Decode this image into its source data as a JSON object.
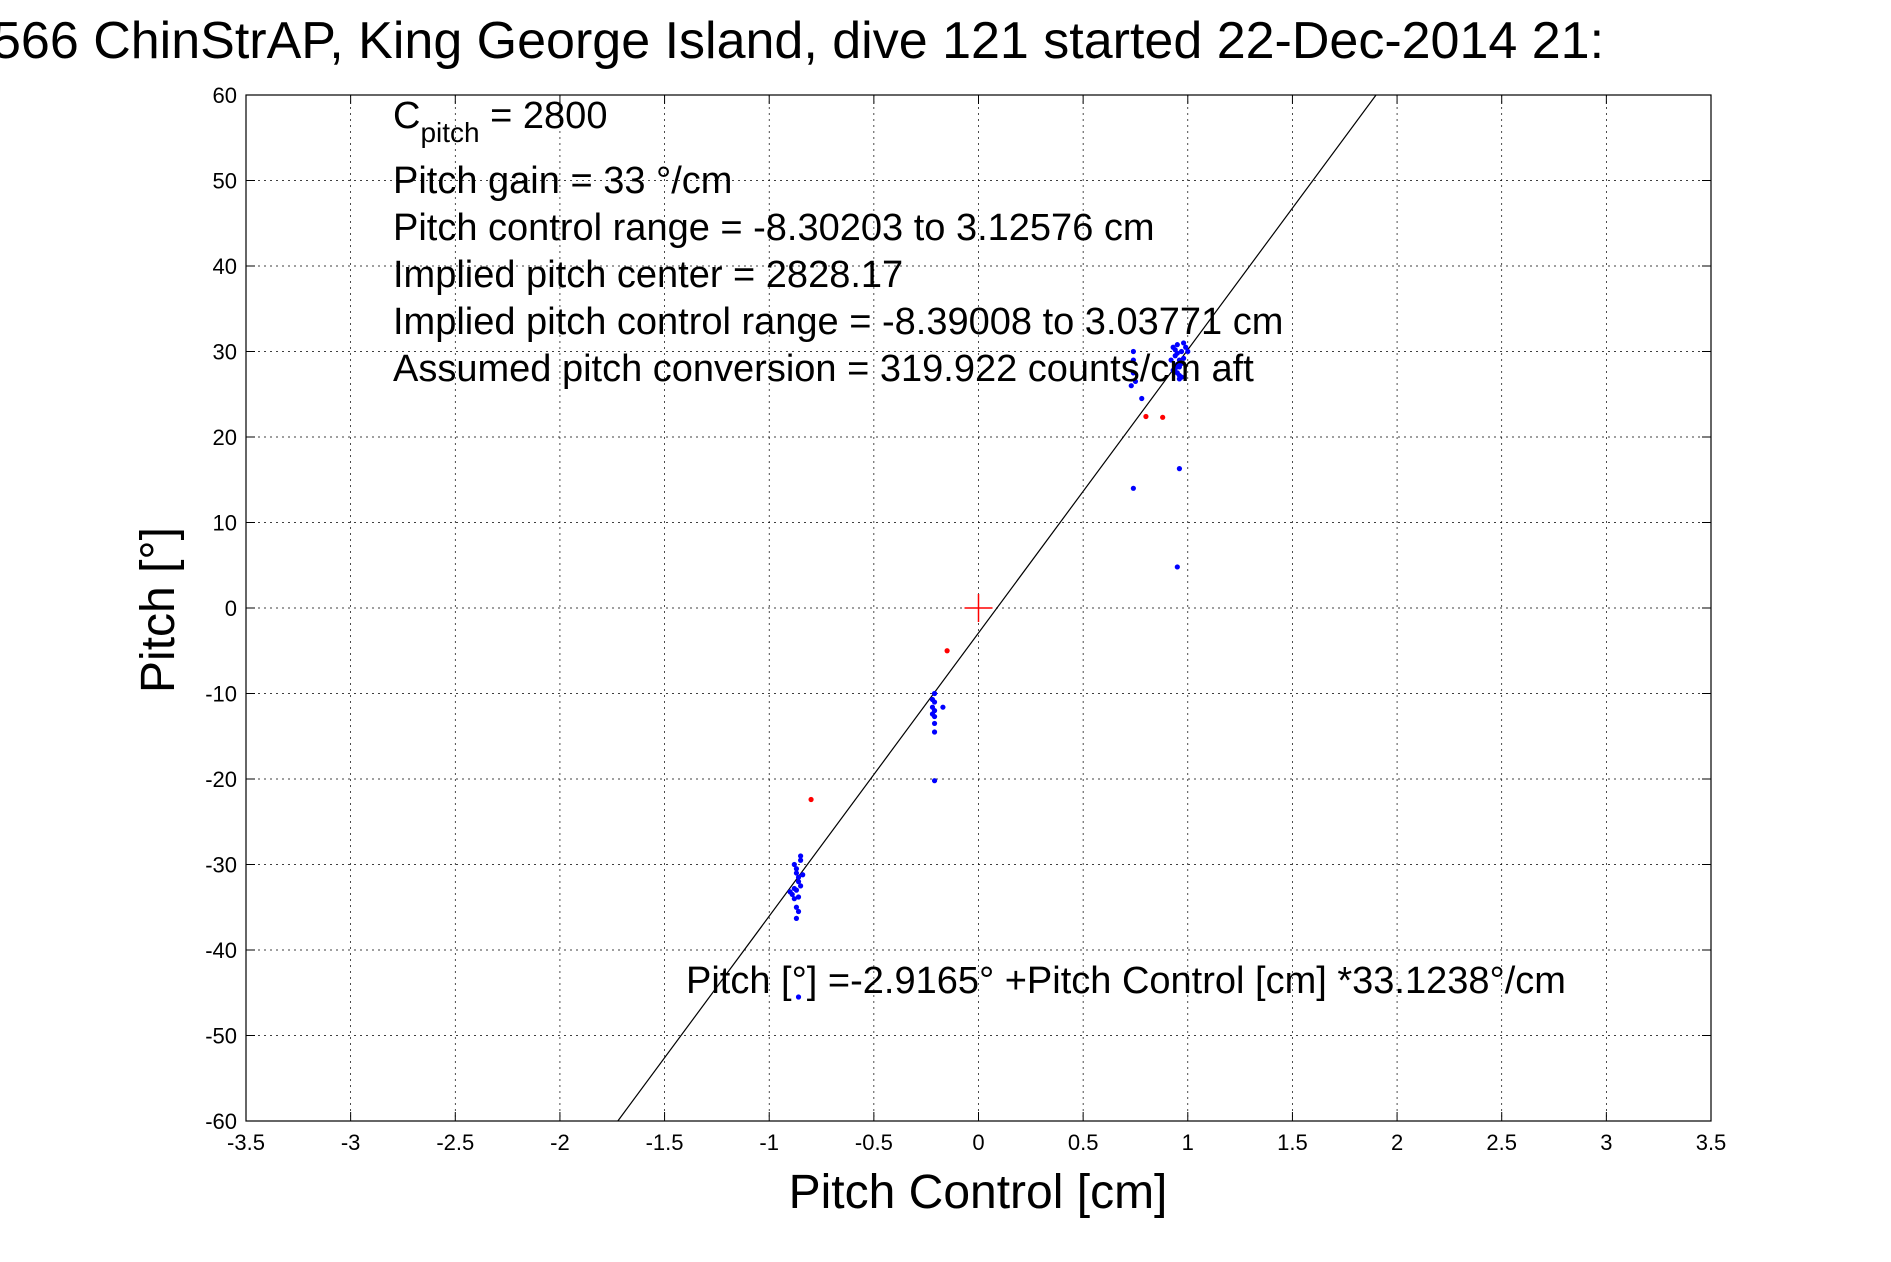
{
  "chart_data": {
    "type": "scatter",
    "title": "566 ChinStrAP, King George Island, dive 121 started 22-Dec-2014 21:",
    "xlabel": "Pitch Control [cm]",
    "ylabel": "Pitch [°]",
    "xlim": [
      -3.5,
      3.5
    ],
    "ylim": [
      -60,
      60
    ],
    "x_ticks": [
      -3.5,
      -3,
      -2.5,
      -2,
      -1.5,
      -1,
      -0.5,
      0,
      0.5,
      1,
      1.5,
      2,
      2.5,
      3,
      3.5
    ],
    "y_ticks": [
      60,
      50,
      40,
      30,
      20,
      10,
      0,
      -10,
      -20,
      -30,
      -40,
      -50,
      -60
    ],
    "x_tick_labels": [
      "-3.5",
      "-3",
      "-2.5",
      "-2",
      "-1.5",
      "-1",
      "-0.5",
      "0",
      "0.5",
      "1",
      "1.5",
      "2",
      "2.5",
      "3",
      "3.5"
    ],
    "y_tick_labels": [
      "60",
      "50",
      "40",
      "30",
      "20",
      "10",
      "0",
      "-10",
      "-20",
      "-30",
      "-40",
      "-50",
      "-60"
    ],
    "grid": true,
    "fit_line": {
      "intercept": -2.9165,
      "slope": 33.1238,
      "color": "#000000"
    },
    "center_marker": {
      "x": 0,
      "y": 0,
      "color": "#ff0000"
    },
    "series": [
      {
        "color": "#0000ff",
        "points": [
          [
            0.74,
            30.0
          ],
          [
            0.74,
            29.0
          ],
          [
            0.74,
            27.5
          ],
          [
            0.75,
            26.5
          ],
          [
            0.73,
            26.0
          ],
          [
            0.78,
            24.5
          ],
          [
            0.74,
            14.0
          ],
          [
            0.93,
            30.5
          ],
          [
            0.94,
            29.5
          ],
          [
            0.95,
            28.5
          ],
          [
            0.96,
            29.0
          ],
          [
            0.97,
            30.0
          ],
          [
            0.98,
            31.0
          ],
          [
            0.95,
            27.5
          ],
          [
            0.96,
            26.8
          ],
          [
            0.94,
            28.0
          ],
          [
            0.97,
            27.0
          ],
          [
            0.99,
            30.5
          ],
          [
            0.92,
            29.0
          ],
          [
            0.95,
            30.8
          ],
          [
            0.96,
            28.2
          ],
          [
            0.93,
            27.8
          ],
          [
            0.98,
            29.2
          ],
          [
            0.97,
            28.6
          ],
          [
            0.94,
            30.2
          ],
          [
            0.95,
            29.8
          ],
          [
            0.96,
            27.2
          ],
          [
            1.0,
            30.0
          ],
          [
            0.96,
            16.3
          ],
          [
            0.95,
            4.8
          ],
          [
            -0.21,
            -10.0
          ],
          [
            -0.21,
            -11.0
          ],
          [
            -0.21,
            -12.0
          ],
          [
            -0.21,
            -12.7
          ],
          [
            -0.21,
            -13.5
          ],
          [
            -0.21,
            -14.5
          ],
          [
            -0.22,
            -10.7
          ],
          [
            -0.22,
            -11.6
          ],
          [
            -0.22,
            -12.4
          ],
          [
            -0.17,
            -11.6
          ],
          [
            -0.21,
            -20.2
          ],
          [
            -0.88,
            -30.0
          ],
          [
            -0.87,
            -31.0
          ],
          [
            -0.86,
            -32.0
          ],
          [
            -0.87,
            -33.0
          ],
          [
            -0.88,
            -34.0
          ],
          [
            -0.86,
            -31.5
          ],
          [
            -0.85,
            -32.5
          ],
          [
            -0.89,
            -33.5
          ],
          [
            -0.87,
            -30.5
          ],
          [
            -0.86,
            -33.8
          ],
          [
            -0.85,
            -29.5
          ],
          [
            -0.84,
            -31.2
          ],
          [
            -0.88,
            -32.8
          ],
          [
            -0.9,
            -33.2
          ],
          [
            -0.87,
            -35.0
          ],
          [
            -0.86,
            -35.5
          ],
          [
            -0.87,
            -36.3
          ],
          [
            -0.85,
            -29.0
          ],
          [
            -0.86,
            -45.5
          ]
        ]
      },
      {
        "color": "#ff0000",
        "points": [
          [
            0.8,
            22.4
          ],
          [
            0.88,
            22.3
          ],
          [
            -0.15,
            -5.0
          ],
          [
            -0.8,
            -22.4
          ]
        ]
      }
    ],
    "annotations": {
      "cpitch_main": "C",
      "cpitch_sub": "pitch",
      "cpitch_value": " = 2800",
      "pitch_gain": "Pitch gain = 33 °/cm",
      "control_range": "Pitch control range = -8.30203 to 3.12576 cm",
      "implied_center": "Implied pitch center = 2828.17",
      "implied_range": "Implied pitch control range = -8.39008 to 3.03771 cm",
      "conversion": "Assumed pitch conversion = 319.922 counts/cm aft",
      "fit_equation": "Pitch [°] =-2.9165° +Pitch Control [cm] *33.1238°/cm"
    }
  }
}
